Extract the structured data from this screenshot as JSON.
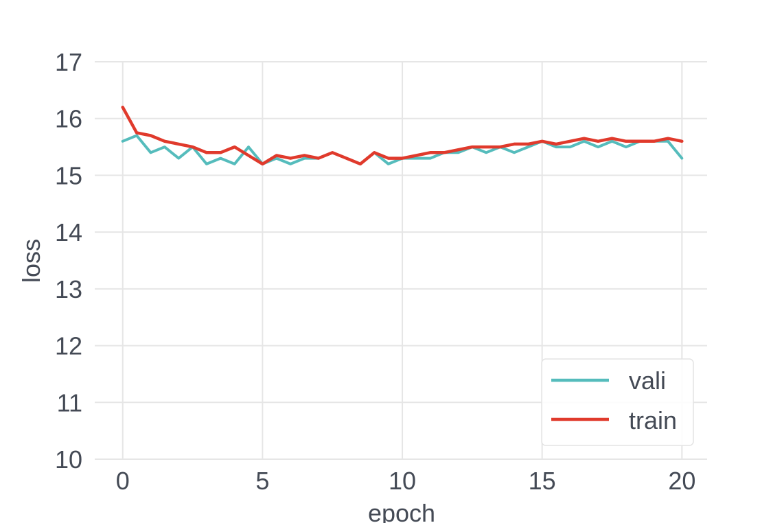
{
  "chart_data": {
    "type": "line",
    "title": "",
    "xlabel": "epoch",
    "ylabel": "loss",
    "xlim": [
      -1,
      20.9
    ],
    "ylim": [
      10,
      17
    ],
    "xticks": [
      0,
      5,
      10,
      15,
      20
    ],
    "yticks": [
      10,
      11,
      12,
      13,
      14,
      15,
      16,
      17
    ],
    "grid": true,
    "legend_position": "lower-right",
    "x": [
      0,
      0.5,
      1,
      1.5,
      2,
      2.5,
      3,
      3.5,
      4,
      4.5,
      5,
      5.5,
      6,
      6.5,
      7,
      7.5,
      8,
      8.5,
      9,
      9.5,
      10,
      10.5,
      11,
      11.5,
      12,
      12.5,
      13,
      13.5,
      14,
      14.5,
      15,
      15.5,
      16,
      16.5,
      17,
      17.5,
      18,
      18.5,
      19,
      19.5,
      20
    ],
    "series": [
      {
        "name": "vali",
        "color": "#55bcbc",
        "values": [
          15.6,
          15.7,
          15.4,
          15.5,
          15.3,
          15.5,
          15.2,
          15.3,
          15.2,
          15.5,
          15.2,
          15.3,
          15.2,
          15.3,
          15.3,
          15.4,
          15.3,
          15.2,
          15.4,
          15.2,
          15.3,
          15.3,
          15.3,
          15.4,
          15.4,
          15.5,
          15.4,
          15.5,
          15.4,
          15.5,
          15.6,
          15.5,
          15.5,
          15.6,
          15.5,
          15.6,
          15.5,
          15.6,
          15.6,
          15.6,
          15.3
        ]
      },
      {
        "name": "train",
        "color": "#e03a2c",
        "values": [
          16.2,
          15.75,
          15.7,
          15.6,
          15.55,
          15.5,
          15.4,
          15.4,
          15.5,
          15.35,
          15.2,
          15.35,
          15.3,
          15.35,
          15.3,
          15.4,
          15.3,
          15.2,
          15.4,
          15.3,
          15.3,
          15.35,
          15.4,
          15.4,
          15.45,
          15.5,
          15.5,
          15.5,
          15.55,
          15.55,
          15.6,
          15.55,
          15.6,
          15.65,
          15.6,
          15.65,
          15.6,
          15.6,
          15.6,
          15.65,
          15.6
        ]
      }
    ]
  }
}
